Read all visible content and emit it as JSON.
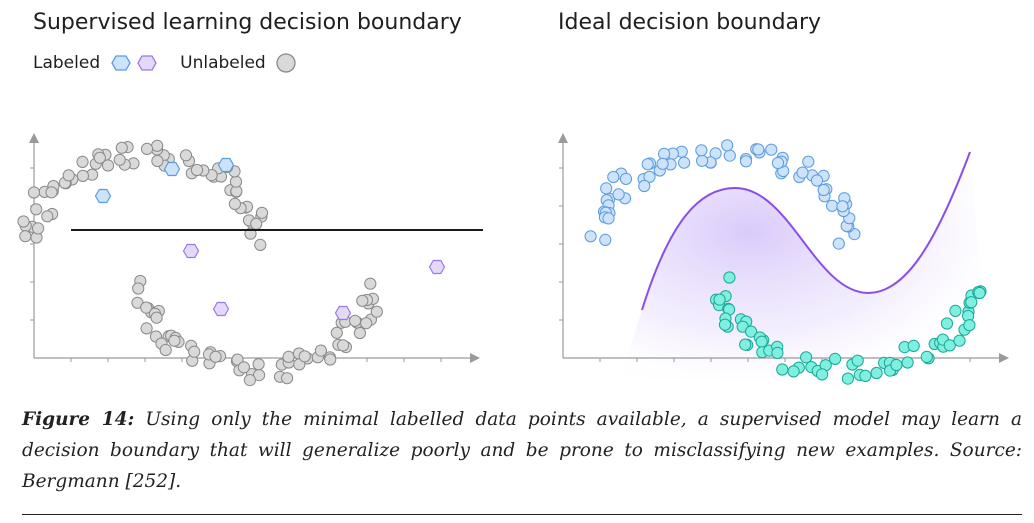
{
  "left_panel": {
    "title": "Supervised learning decision boundary",
    "legend_labeled": "Labeled",
    "legend_unlabeled": "Unlabeled"
  },
  "right_panel": {
    "title": "Ideal decision boundary"
  },
  "colors": {
    "gray_point": "#d9d9d9",
    "gray_stroke": "#8a8a8a",
    "blue_point": "#cde3fa",
    "blue_stroke": "#5b9be0",
    "purple_point": "#e5d9fb",
    "purple_stroke": "#9b78e6",
    "teal_point": "#7ff0df",
    "teal_stroke": "#1aa79a",
    "boundary_purple": "#8a4ee8",
    "axis": "#9a9a9a"
  },
  "caption": {
    "label": "Figure 14:",
    "text": "Using only the minimal labelled data points available, a supervised model may learn a decision boundary that will generalize poorly and be prone to misclassifying new examples. Source: Bergmann [252]."
  }
}
